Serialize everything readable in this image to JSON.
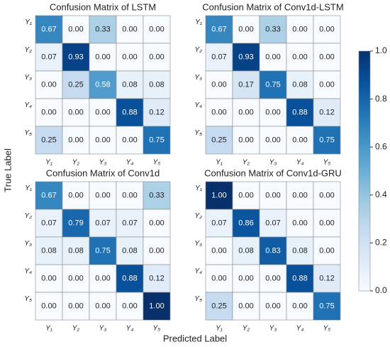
{
  "chart_data": [
    {
      "type": "heatmap",
      "title": "Confusion Matrix of LSTM",
      "x_categories": [
        "Y₁",
        "Y₂",
        "Y₃",
        "Y₄",
        "Y₅"
      ],
      "y_categories": [
        "Y₁",
        "Y₂",
        "Y₃",
        "Y₄",
        "Y₅"
      ],
      "values": [
        [
          0.67,
          0,
          0.33,
          0,
          0
        ],
        [
          0.07,
          0.93,
          0,
          0,
          0
        ],
        [
          0,
          0.25,
          0.58,
          0.08,
          0.08
        ],
        [
          0,
          0,
          0,
          0.88,
          0.12
        ],
        [
          0.25,
          0,
          0,
          0,
          0.75
        ]
      ],
      "value_labels": [
        [
          "0.67",
          "0.00",
          "0.33",
          "0.00",
          "0.00"
        ],
        [
          "0.07",
          "0.93",
          "0.00",
          "0.00",
          "0.00"
        ],
        [
          "0.00",
          "0.25",
          "0.58",
          "0.08",
          "0.08"
        ],
        [
          "0.00",
          "0.00",
          "0.00",
          "0.88",
          "0.12"
        ],
        [
          "0.25",
          "0.00",
          "0.00",
          "0.00",
          "0.75"
        ]
      ]
    },
    {
      "type": "heatmap",
      "title": "Confusion Matrix of Conv1d-LSTM",
      "x_categories": [
        "Y₁",
        "Y₂",
        "Y₃",
        "Y₄",
        "Y₅"
      ],
      "y_categories": [
        "Y₁",
        "Y₂",
        "Y₃",
        "Y₄",
        "Y₅"
      ],
      "values": [
        [
          0.67,
          0,
          0.33,
          0,
          0
        ],
        [
          0.07,
          0.93,
          0,
          0,
          0
        ],
        [
          0,
          0.17,
          0.75,
          0.08,
          0
        ],
        [
          0,
          0,
          0,
          0.88,
          0.12
        ],
        [
          0.25,
          0,
          0,
          0,
          0.75
        ]
      ],
      "value_labels": [
        [
          "0.67",
          "0.00",
          "0.33",
          "0.00",
          "0.00"
        ],
        [
          "0.07",
          "0.93",
          "0.00",
          "0.00",
          "0.00"
        ],
        [
          "0.00",
          "0.17",
          "0.75",
          "0.08",
          "0.00"
        ],
        [
          "0.00",
          "0.00",
          "0.00",
          "0.88",
          "0.12"
        ],
        [
          "0.25",
          "0.00",
          "0.00",
          "0.00",
          "0.75"
        ]
      ]
    },
    {
      "type": "heatmap",
      "title": "Confusion Matrix of Conv1d",
      "x_categories": [
        "Y₁",
        "Y₂",
        "Y₃",
        "Y₄",
        "Y₅"
      ],
      "y_categories": [
        "Y₁",
        "Y₂",
        "Y₃",
        "Y₄",
        "Y₅"
      ],
      "values": [
        [
          0.67,
          0,
          0,
          0,
          0.33
        ],
        [
          0.07,
          0.79,
          0.07,
          0.07,
          0
        ],
        [
          0.08,
          0.08,
          0.75,
          0.08,
          0
        ],
        [
          0,
          0,
          0,
          0.88,
          0.12
        ],
        [
          0,
          0,
          0,
          0,
          1
        ]
      ],
      "value_labels": [
        [
          "0.67",
          "0.00",
          "0.00",
          "0.00",
          "0.33"
        ],
        [
          "0.07",
          "0.79",
          "0.07",
          "0.07",
          "0.00"
        ],
        [
          "0.08",
          "0.08",
          "0.75",
          "0.08",
          "0.00"
        ],
        [
          "0.00",
          "0.00",
          "0.00",
          "0.88",
          "0.12"
        ],
        [
          "0.00",
          "0.00",
          "0.00",
          "0.00",
          "1.00"
        ]
      ]
    },
    {
      "type": "heatmap",
      "title": "Confusion Matrix of Conv1d-GRU",
      "x_categories": [
        "Y₁",
        "Y₂",
        "Y₃",
        "Y₄",
        "Y₅"
      ],
      "y_categories": [
        "Y₁",
        "Y₂",
        "Y₃",
        "Y₄",
        "Y₅"
      ],
      "values": [
        [
          1,
          0,
          0,
          0,
          0
        ],
        [
          0.07,
          0.86,
          0.07,
          0,
          0
        ],
        [
          0,
          0.08,
          0.83,
          0.08,
          0
        ],
        [
          0,
          0,
          0,
          0.88,
          0.12
        ],
        [
          0.25,
          0,
          0,
          0,
          0.75
        ]
      ],
      "value_labels": [
        [
          "1.00",
          "0.00",
          "0.00",
          "0.00",
          "0.00"
        ],
        [
          "0.07",
          "0.86",
          "0.07",
          "0.00",
          "0.00"
        ],
        [
          "0.00",
          "0.08",
          "0.83",
          "0.08",
          "0.00"
        ],
        [
          "0.00",
          "0.00",
          "0.00",
          "0.88",
          "0.12"
        ],
        [
          "0.25",
          "0.00",
          "0.00",
          "0.00",
          "0.75"
        ]
      ]
    }
  ],
  "xlabel": "Predicted Label",
  "ylabel": "True Label",
  "colorbar": {
    "ylim": [
      0,
      1
    ],
    "yticks": [
      {
        "value": 0,
        "label": "0.0"
      },
      0.2,
      0.4,
      0.6,
      0.8,
      {
        "value": 1,
        "label": "1.0"
      }
    ],
    "colormap": [
      "#f7fbff",
      "#deebf7",
      "#c6dbef",
      "#9ecae1",
      "#6baed6",
      "#4292c6",
      "#2171b5",
      "#08519c",
      "#08306b"
    ]
  }
}
